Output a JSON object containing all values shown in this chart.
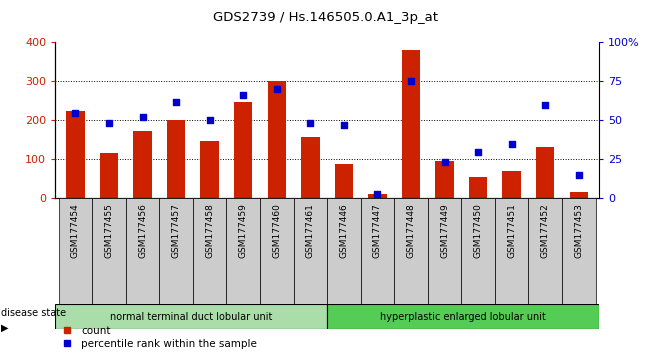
{
  "title": "GDS2739 / Hs.146505.0.A1_3p_at",
  "samples": [
    "GSM177454",
    "GSM177455",
    "GSM177456",
    "GSM177457",
    "GSM177458",
    "GSM177459",
    "GSM177460",
    "GSM177461",
    "GSM177446",
    "GSM177447",
    "GSM177448",
    "GSM177449",
    "GSM177450",
    "GSM177451",
    "GSM177452",
    "GSM177453"
  ],
  "counts": [
    225,
    115,
    172,
    200,
    148,
    248,
    302,
    157,
    88,
    10,
    380,
    95,
    55,
    70,
    132,
    15
  ],
  "percentiles": [
    55,
    48,
    52,
    62,
    50,
    66,
    70,
    48,
    47,
    3,
    75,
    23,
    30,
    35,
    60,
    15
  ],
  "group1_label": "normal terminal duct lobular unit",
  "group2_label": "hyperplastic enlarged lobular unit",
  "group1_count": 8,
  "group2_count": 8,
  "bar_color": "#cc2200",
  "dot_color": "#0000cc",
  "group1_bg": "#aaddaa",
  "group2_bg": "#55cc55",
  "tick_bg": "#cccccc",
  "ylim_left": [
    0,
    400
  ],
  "ylim_right": [
    0,
    100
  ],
  "yticks_left": [
    0,
    100,
    200,
    300,
    400
  ],
  "yticks_right": [
    0,
    25,
    50,
    75,
    100
  ],
  "grid_lines": [
    100,
    200,
    300
  ],
  "disease_state_label": "disease state",
  "legend_count_label": "count",
  "legend_pct_label": "percentile rank within the sample"
}
